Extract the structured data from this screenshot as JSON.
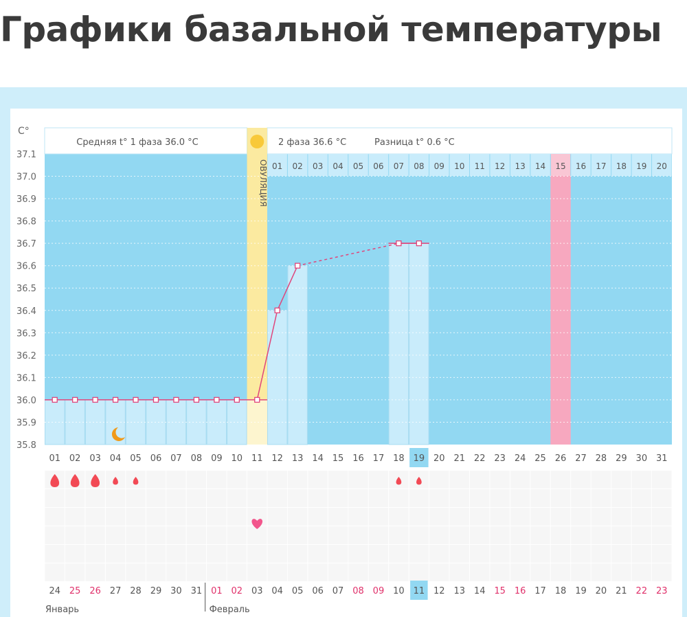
{
  "page_title": "Графики базальной температуры",
  "chart_data": {
    "type": "bar",
    "y_unit_label": "C°",
    "ylim": [
      35.8,
      37.1
    ],
    "y_ticks": [
      "37.1",
      "37.0",
      "36.9",
      "36.8",
      "36.7",
      "36.6",
      "36.5",
      "36.4",
      "36.3",
      "36.2",
      "36.1",
      "36.0",
      "35.9",
      "35.8"
    ],
    "grid": true,
    "phase1_label": "Средняя t° 1 фаза 36.0 °C",
    "phase2_label": "2 фаза 36.6 °C",
    "difference_label": "Разница t° 0.6 °C",
    "ovulation_label": "ОВУЛЯЦИЯ",
    "ovulation_day": 11,
    "expected_period_day": 26,
    "current_day": 19,
    "cycle_days": [
      "01",
      "02",
      "03",
      "04",
      "05",
      "06",
      "07",
      "08",
      "09",
      "10",
      "11",
      "12",
      "13",
      "14",
      "15",
      "16",
      "17",
      "18",
      "19",
      "20",
      "21",
      "22",
      "23",
      "24",
      "25",
      "26",
      "27",
      "28",
      "29",
      "30",
      "31"
    ],
    "luteal_days": [
      "01",
      "02",
      "03",
      "04",
      "05",
      "06",
      "07",
      "08",
      "09",
      "10",
      "11",
      "12",
      "13",
      "14",
      "15",
      "16",
      "17",
      "18",
      "19",
      "20"
    ],
    "temperatures": [
      36.0,
      36.0,
      36.0,
      36.0,
      36.0,
      36.0,
      36.0,
      36.0,
      36.0,
      36.0,
      36.0,
      36.4,
      36.6,
      null,
      null,
      null,
      null,
      36.7,
      36.7
    ],
    "bleeding": {
      "1": "heavy",
      "2": "heavy",
      "3": "heavy",
      "4": "light",
      "5": "light",
      "18": "light",
      "19": "light"
    },
    "moon_day": 4,
    "heart_day": 11,
    "dates": [
      "24",
      "25",
      "26",
      "27",
      "28",
      "29",
      "30",
      "31",
      "01",
      "02",
      "03",
      "04",
      "05",
      "06",
      "07",
      "08",
      "09",
      "10",
      "11",
      "12",
      "13",
      "14",
      "15",
      "16",
      "17",
      "18",
      "19",
      "20",
      "21",
      "22",
      "23"
    ],
    "weekend_dates_index": [
      1,
      2,
      8,
      9,
      15,
      16,
      22,
      23,
      29,
      30
    ],
    "months": [
      "Январь",
      "Февраль"
    ],
    "colors": {
      "plot_bg": "#92d8f2",
      "bar": "#c9ecfb",
      "line": "#e0457b",
      "ovulation": "#fbeaa0",
      "period": "#f7a8bf",
      "sun": "#f8c93a",
      "drop": "#f24a55",
      "heart": "#f2568c",
      "moon": "#f09a1a",
      "weekend": "#e0306a",
      "highlight": "#92d8f2"
    }
  }
}
